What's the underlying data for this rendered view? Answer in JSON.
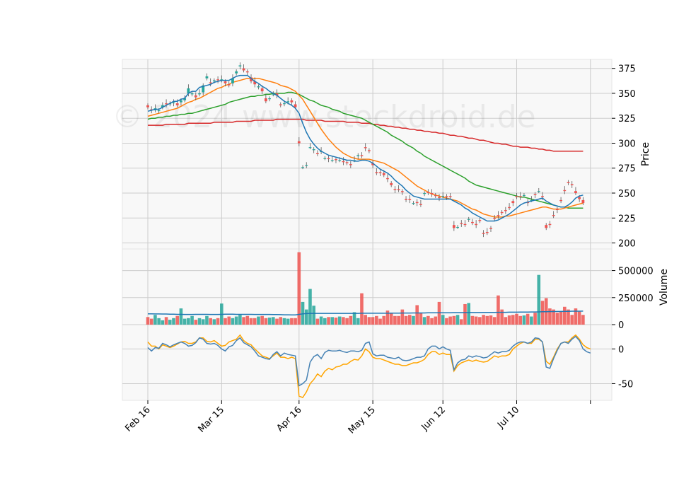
{
  "chart_data": {
    "type": "candlestick",
    "watermark": "© 2024 www.stockdroid.de",
    "x_ticks": [
      "Feb 16",
      "Mar 15",
      "Apr 16",
      "May 15",
      "Jun 12",
      "Jul 10"
    ],
    "x_tick_index": [
      0,
      20,
      41,
      61,
      80,
      100
    ],
    "panels": {
      "price": {
        "ylabel": "Price",
        "yticks": [
          200,
          225,
          250,
          275,
          300,
          325,
          350,
          375
        ],
        "ylim": [
          194,
          384
        ],
        "colors": {
          "up": "#26a69a",
          "down": "#ef5350",
          "sma_short": "#1f77b4",
          "sma_mid": "#ff7f0e",
          "sma_long": "#2ca02c",
          "sma_200": "#d62728"
        },
        "close": [
          336,
          333,
          335,
          333,
          338,
          339,
          340,
          341,
          338,
          343,
          345,
          355,
          350,
          346,
          350,
          358,
          367,
          360,
          363,
          363,
          364,
          360,
          358,
          365,
          372,
          378,
          373,
          371,
          362,
          359,
          357,
          352,
          342,
          345,
          349,
          348,
          338,
          340,
          342,
          341,
          336,
          300,
          276,
          278,
          296,
          294,
          289,
          292,
          285,
          284,
          283,
          283,
          283,
          281,
          280,
          278,
          283,
          288,
          287,
          295,
          292,
          278,
          270,
          270,
          268,
          264,
          258,
          253,
          253,
          251,
          243,
          243,
          240,
          240,
          238,
          250,
          250,
          249,
          247,
          245,
          247,
          246,
          246,
          215,
          216,
          219,
          218,
          224,
          220,
          218,
          222,
          209,
          210,
          214,
          224,
          227,
          230,
          232,
          235,
          240,
          246,
          246,
          248,
          240,
          243,
          248,
          252,
          246,
          215,
          218,
          227,
          233,
          242,
          252,
          260,
          258,
          250,
          244,
          240
        ],
        "open": [
          338,
          334,
          333,
          333,
          336,
          340,
          339,
          340,
          340,
          341,
          343,
          350,
          349,
          348,
          349,
          351,
          365,
          361,
          362,
          364,
          363,
          362,
          359,
          360,
          370,
          377,
          375,
          372,
          366,
          362,
          356,
          355,
          345,
          345,
          349,
          350,
          339,
          340,
          341,
          343,
          339,
          302,
          276,
          278,
          296,
          293,
          290,
          292,
          285,
          285,
          283,
          284,
          283,
          282,
          281,
          279,
          283,
          287,
          288,
          296,
          293,
          280,
          271,
          271,
          270,
          265,
          260,
          254,
          254,
          252,
          244,
          244,
          240,
          241,
          239,
          250,
          251,
          250,
          248,
          246,
          247,
          247,
          247,
          218,
          216,
          220,
          219,
          224,
          221,
          219,
          223,
          210,
          211,
          215,
          225,
          228,
          231,
          233,
          236,
          242,
          247,
          247,
          248,
          241,
          243,
          249,
          252,
          247,
          218,
          219,
          228,
          234,
          243,
          253,
          261,
          259,
          252,
          246,
          243
        ],
        "sma_short": [
          332,
          333,
          334,
          334,
          336,
          338,
          340,
          342,
          342,
          344,
          345,
          350,
          352,
          352,
          356,
          357,
          358,
          359,
          361,
          362,
          363,
          363,
          363,
          365,
          367,
          368,
          368,
          368,
          365,
          362,
          360,
          357,
          355,
          352,
          350,
          348,
          345,
          342,
          340,
          338,
          335,
          330,
          320,
          311,
          304,
          299,
          295,
          292,
          290,
          288,
          287,
          286,
          285,
          284,
          283,
          283,
          282,
          282,
          283,
          283,
          282,
          280,
          277,
          274,
          272,
          270,
          267,
          263,
          260,
          257,
          253,
          250,
          247,
          246,
          245,
          244,
          244,
          244,
          244,
          244,
          244,
          244,
          244,
          242,
          240,
          238,
          235,
          233,
          230,
          228,
          226,
          224,
          222,
          222,
          222,
          223,
          225,
          227,
          229,
          232,
          235,
          238,
          240,
          241,
          242,
          243,
          244,
          245,
          242,
          240,
          238,
          237,
          236,
          236,
          238,
          241,
          245,
          247,
          248
        ],
        "sma_mid": [
          327,
          328,
          329,
          330,
          331,
          332,
          333,
          334,
          335,
          337,
          339,
          341,
          342,
          344,
          345,
          347,
          349,
          351,
          353,
          355,
          356,
          358,
          359,
          361,
          362,
          363,
          364,
          365,
          365,
          365,
          365,
          364,
          363,
          362,
          361,
          360,
          358,
          357,
          356,
          354,
          352,
          348,
          344,
          338,
          332,
          326,
          320,
          314,
          309,
          304,
          300,
          296,
          293,
          290,
          288,
          286,
          285,
          284,
          284,
          284,
          284,
          283,
          282,
          281,
          280,
          278,
          276,
          274,
          272,
          269,
          266,
          263,
          260,
          257,
          255,
          253,
          251,
          249,
          248,
          247,
          246,
          245,
          244,
          243,
          242,
          240,
          238,
          236,
          234,
          233,
          231,
          229,
          228,
          227,
          226,
          226,
          226,
          227,
          227,
          228,
          229,
          230,
          231,
          232,
          233,
          234,
          235,
          236,
          236,
          235,
          234,
          234,
          234,
          235,
          236,
          237,
          238,
          239,
          240
        ],
        "sma_long": [
          324,
          325,
          325,
          326,
          326,
          327,
          327,
          328,
          328,
          329,
          329,
          330,
          330,
          331,
          332,
          333,
          334,
          335,
          336,
          337,
          338,
          339,
          341,
          342,
          343,
          344,
          345,
          346,
          347,
          347,
          348,
          348,
          349,
          349,
          350,
          350,
          350,
          350,
          351,
          351,
          350,
          349,
          347,
          345,
          343,
          342,
          340,
          338,
          337,
          336,
          334,
          333,
          332,
          330,
          329,
          328,
          327,
          326,
          325,
          323,
          321,
          319,
          317,
          315,
          313,
          311,
          308,
          306,
          304,
          302,
          299,
          297,
          295,
          292,
          290,
          287,
          285,
          283,
          281,
          279,
          277,
          275,
          273,
          271,
          269,
          267,
          265,
          262,
          260,
          258,
          257,
          256,
          255,
          254,
          253,
          252,
          251,
          250,
          249,
          248,
          247,
          246,
          246,
          245,
          244,
          243,
          242,
          241,
          240,
          239,
          238,
          237,
          236,
          236,
          235,
          235,
          235,
          235,
          235
        ],
        "sma_200": [
          318,
          318,
          318,
          318,
          318,
          319,
          319,
          319,
          319,
          319,
          319,
          320,
          320,
          320,
          320,
          320,
          320,
          320,
          321,
          321,
          321,
          321,
          321,
          321,
          322,
          322,
          322,
          322,
          322,
          323,
          323,
          323,
          323,
          323,
          323,
          324,
          324,
          324,
          324,
          324,
          324,
          324,
          324,
          323,
          323,
          323,
          323,
          323,
          322,
          322,
          322,
          322,
          322,
          322,
          321,
          321,
          321,
          321,
          320,
          320,
          320,
          319,
          319,
          318,
          318,
          317,
          317,
          316,
          316,
          315,
          315,
          314,
          314,
          313,
          313,
          312,
          312,
          311,
          311,
          310,
          310,
          309,
          308,
          308,
          307,
          307,
          306,
          305,
          305,
          304,
          303,
          303,
          302,
          301,
          300,
          300,
          299,
          299,
          298,
          297,
          297,
          296,
          296,
          296,
          295,
          295,
          294,
          294,
          293,
          293,
          292,
          292,
          292,
          292,
          292,
          292,
          292,
          292,
          292
        ]
      },
      "volume": {
        "ylabel": "Volume",
        "yticks": [
          0,
          250000,
          500000
        ],
        "ytick_labels": [
          "0",
          "250000",
          "500000"
        ],
        "ylim": [
          0,
          700000
        ],
        "values": [
          70000,
          55000,
          90000,
          60000,
          40000,
          70000,
          45000,
          60000,
          80000,
          150000,
          55000,
          60000,
          80000,
          45000,
          60000,
          50000,
          80000,
          60000,
          50000,
          60000,
          195000,
          60000,
          75000,
          60000,
          75000,
          90000,
          70000,
          80000,
          60000,
          60000,
          75000,
          80000,
          60000,
          65000,
          70000,
          55000,
          70000,
          60000,
          55000,
          60000,
          60000,
          670000,
          210000,
          140000,
          330000,
          175000,
          55000,
          75000,
          60000,
          70000,
          70000,
          65000,
          75000,
          70000,
          60000,
          80000,
          115000,
          60000,
          290000,
          90000,
          70000,
          70000,
          80000,
          55000,
          80000,
          130000,
          110000,
          80000,
          80000,
          140000,
          80000,
          90000,
          80000,
          180000,
          110000,
          70000,
          80000,
          60000,
          75000,
          210000,
          90000,
          60000,
          75000,
          80000,
          90000,
          50000,
          190000,
          200000,
          80000,
          75000,
          70000,
          90000,
          80000,
          85000,
          70000,
          270000,
          140000,
          70000,
          85000,
          90000,
          100000,
          80000,
          85000,
          100000,
          75000,
          110000,
          460000,
          220000,
          245000,
          150000,
          140000,
          110000,
          120000,
          165000,
          140000,
          90000,
          150000,
          120000,
          90000
        ],
        "vol_ma": [
          100000,
          100000,
          99000,
          99000,
          98000,
          98000,
          97000,
          96000,
          95000,
          95000,
          94000,
          94000,
          94000,
          95000,
          95000,
          95000,
          95000,
          94000,
          94000,
          94000,
          95000,
          96000,
          96000,
          96000,
          95000,
          95000,
          95000,
          95000,
          95000,
          94000,
          94000,
          94000,
          94000,
          94000,
          93000,
          93000,
          92000,
          91000,
          91000,
          90000,
          90000,
          95000,
          100000,
          102000,
          104000,
          104000,
          104000,
          104000,
          104000,
          104000,
          104000,
          104000,
          104000,
          104000,
          104000,
          104000,
          104000,
          104000,
          105000,
          105000,
          105000,
          105000,
          105000,
          105000,
          105000,
          105000,
          106000,
          106000,
          106000,
          107000,
          107000,
          107000,
          108000,
          108000,
          108000,
          108000,
          109000,
          109000,
          109000,
          110000,
          110000,
          110000,
          110000,
          111000,
          111000,
          111000,
          111000,
          112000,
          112000,
          112000,
          112000,
          113000,
          113000,
          113000,
          113000,
          114000,
          114000,
          114000,
          115000,
          115000,
          115000,
          116000,
          116000,
          116000,
          117000,
          117000,
          118000,
          119000,
          120000,
          121000,
          121000,
          122000,
          122000,
          123000,
          123000,
          124000,
          124000,
          124000,
          125000
        ]
      },
      "oscillator": {
        "yticks": [
          -50,
          0
        ],
        "ylim": [
          -74,
          35
        ],
        "colors": {
          "line1": "#4682b4",
          "line2": "#ffa500"
        },
        "line1": [
          2,
          -3,
          2,
          1,
          8,
          6,
          3,
          6,
          8,
          10,
          8,
          4,
          5,
          9,
          16,
          14,
          8,
          7,
          8,
          5,
          0,
          -3,
          3,
          5,
          12,
          16,
          9,
          6,
          3,
          -3,
          -10,
          -12,
          -14,
          -15,
          -8,
          -4,
          -10,
          -6,
          -8,
          -9,
          -10,
          -53,
          -50,
          -45,
          -19,
          -11,
          -8,
          -14,
          -5,
          -2,
          -3,
          -3,
          -2,
          -4,
          -5,
          -3,
          -3,
          -4,
          -2,
          8,
          10,
          -7,
          -10,
          -9,
          -9,
          -12,
          -13,
          -14,
          -12,
          -16,
          -17,
          -16,
          -14,
          -12,
          -12,
          -10,
          0,
          4,
          4,
          0,
          3,
          0,
          -2,
          -30,
          -20,
          -16,
          -15,
          -10,
          -12,
          -10,
          -11,
          -13,
          -12,
          -8,
          -4,
          -6,
          -4,
          -4,
          -2,
          4,
          8,
          10,
          10,
          8,
          10,
          16,
          15,
          10,
          -26,
          -28,
          -14,
          -2,
          8,
          10,
          8,
          14,
          18,
          12,
          0,
          -4,
          -6
        ],
        "line2": [
          10,
          4,
          4,
          0,
          6,
          4,
          2,
          4,
          7,
          10,
          11,
          8,
          8,
          10,
          16,
          16,
          11,
          10,
          12,
          8,
          4,
          5,
          10,
          12,
          14,
          20,
          12,
          8,
          6,
          0,
          -5,
          -10,
          -12,
          -14,
          -10,
          -6,
          -12,
          -12,
          -14,
          -12,
          -14,
          -68,
          -70,
          -62,
          -50,
          -44,
          -36,
          -40,
          -32,
          -28,
          -30,
          -26,
          -25,
          -22,
          -22,
          -18,
          -15,
          -16,
          -10,
          0,
          -4,
          -12,
          -14,
          -14,
          -16,
          -18,
          -20,
          -22,
          -22,
          -24,
          -24,
          -22,
          -20,
          -20,
          -18,
          -15,
          -8,
          -4,
          -4,
          -8,
          -6,
          -8,
          -8,
          -32,
          -24,
          -20,
          -18,
          -16,
          -18,
          -16,
          -18,
          -19,
          -18,
          -14,
          -10,
          -12,
          -10,
          -10,
          -8,
          0,
          4,
          8,
          10,
          8,
          8,
          14,
          14,
          10,
          -18,
          -22,
          -12,
          0,
          8,
          10,
          10,
          16,
          20,
          14,
          6,
          2,
          0
        ]
      }
    }
  }
}
